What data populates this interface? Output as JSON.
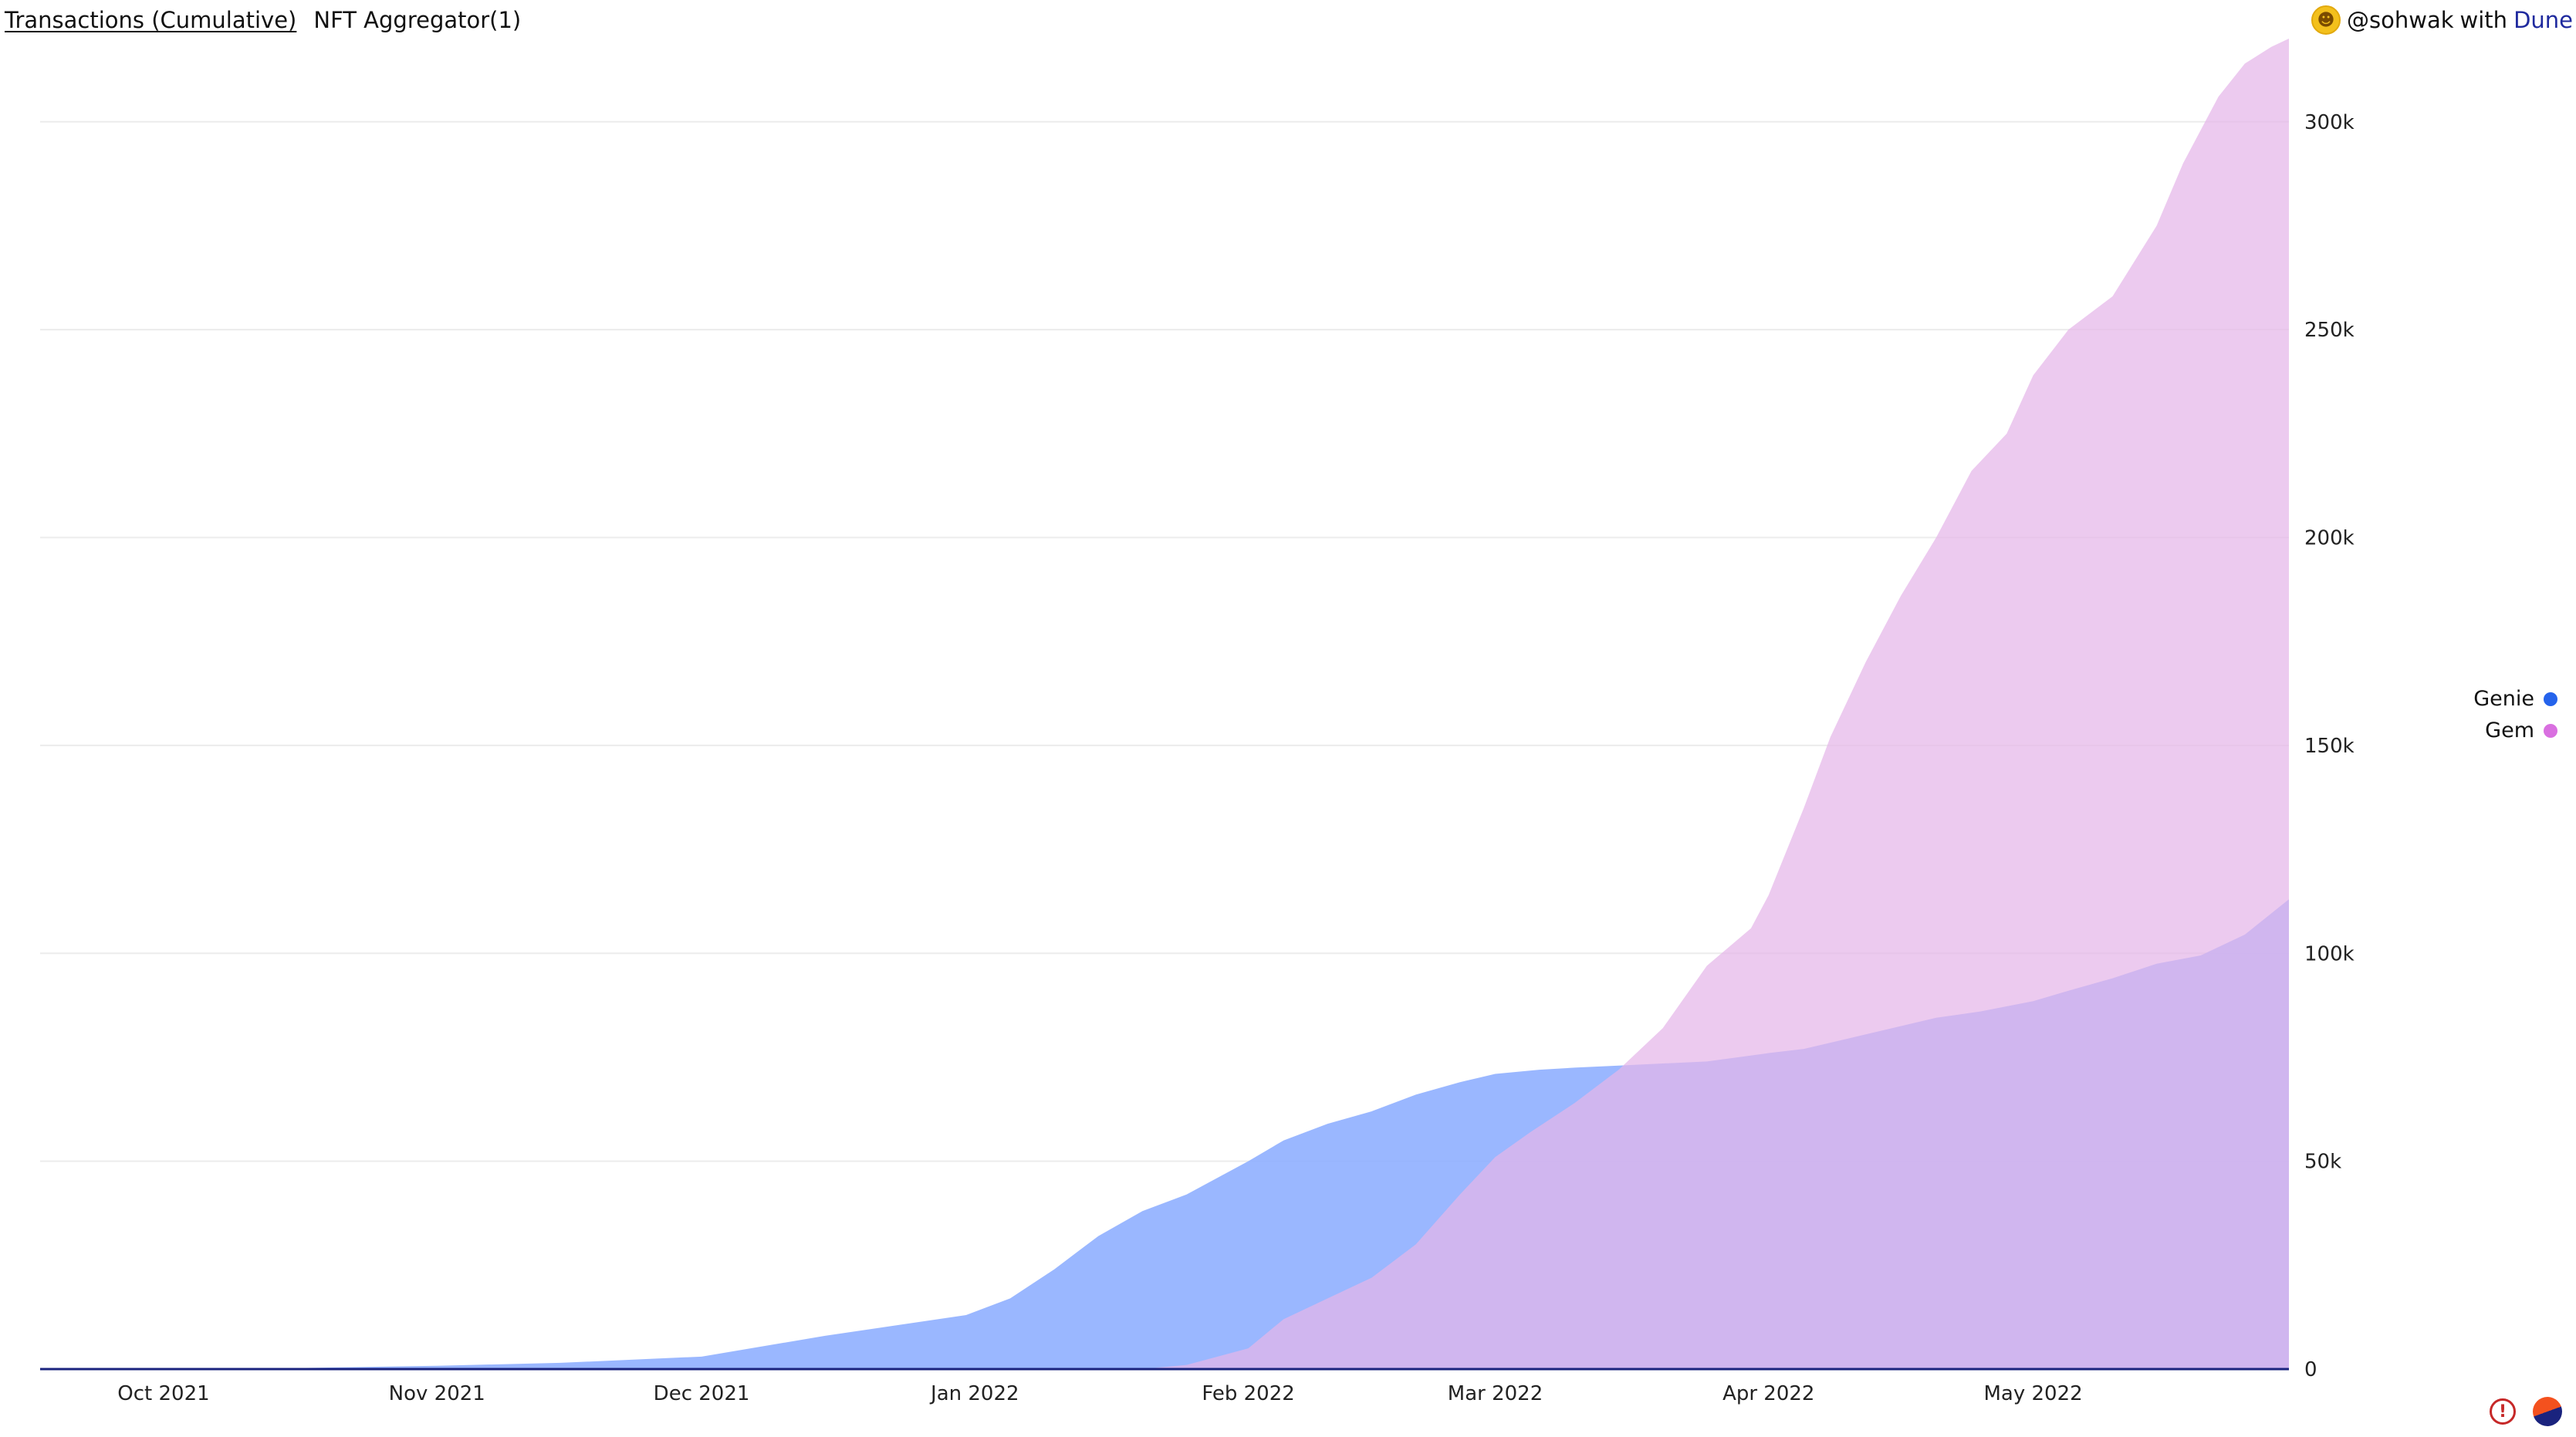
{
  "header": {
    "tabs": [
      {
        "label": "Transactions (Cumulative)"
      },
      {
        "label": "NFT Aggregator(1)"
      }
    ],
    "credit": {
      "author": "@sohwak",
      "with": "with",
      "brand": "Dune"
    }
  },
  "colors": {
    "genie": "#8fafff",
    "gem": "#e5b5e9",
    "overlap": "#b89aea",
    "genie_dot": "#2563eb",
    "gem_dot": "#d96fe0"
  },
  "chart_data": {
    "type": "area",
    "title": "",
    "xlabel": "",
    "ylabel": "",
    "x_ticks": [
      "Oct 2021",
      "Nov 2021",
      "Dec 2021",
      "Jan 2022",
      "Feb 2022",
      "Mar 2022",
      "Apr 2022",
      "May 2022"
    ],
    "y_ticks": [
      "0",
      "50k",
      "100k",
      "150k",
      "200k",
      "250k",
      "300k"
    ],
    "ylim": [
      0,
      320000
    ],
    "xlim": [
      "2021-09-17",
      "2022-05-30"
    ],
    "y_axis_position": "right",
    "grid": true,
    "legend_position": "right",
    "series": [
      {
        "name": "Genie",
        "x": [
          "2021-09-17",
          "2021-10-15",
          "2021-11-01",
          "2021-11-15",
          "2021-12-01",
          "2021-12-15",
          "2021-12-31",
          "2022-01-05",
          "2022-01-10",
          "2022-01-15",
          "2022-01-20",
          "2022-01-25",
          "2022-02-01",
          "2022-02-05",
          "2022-02-10",
          "2022-02-15",
          "2022-02-20",
          "2022-02-25",
          "2022-03-01",
          "2022-03-06",
          "2022-03-10",
          "2022-03-15",
          "2022-03-20",
          "2022-03-25",
          "2022-04-01",
          "2022-04-05",
          "2022-04-10",
          "2022-04-15",
          "2022-04-20",
          "2022-04-25",
          "2022-05-01",
          "2022-05-05",
          "2022-05-10",
          "2022-05-15",
          "2022-05-20",
          "2022-05-25",
          "2022-05-30"
        ],
        "values": [
          0,
          200,
          800,
          1500,
          3000,
          8000,
          13000,
          17000,
          24000,
          32000,
          38000,
          42000,
          50000,
          55000,
          59000,
          62000,
          66000,
          69000,
          71000,
          72000,
          72500,
          73000,
          73500,
          74000,
          76000,
          77000,
          79500,
          82000,
          84500,
          86000,
          88500,
          91000,
          94000,
          97500,
          99500,
          104500,
          113000
        ]
      },
      {
        "name": "Gem",
        "x": [
          "2021-09-17",
          "2022-01-20",
          "2022-01-25",
          "2022-02-01",
          "2022-02-05",
          "2022-02-10",
          "2022-02-15",
          "2022-02-20",
          "2022-02-25",
          "2022-03-01",
          "2022-03-05",
          "2022-03-10",
          "2022-03-15",
          "2022-03-20",
          "2022-03-25",
          "2022-03-30",
          "2022-04-01",
          "2022-04-05",
          "2022-04-08",
          "2022-04-12",
          "2022-04-16",
          "2022-04-20",
          "2022-04-24",
          "2022-04-28",
          "2022-05-01",
          "2022-05-05",
          "2022-05-10",
          "2022-05-15",
          "2022-05-18",
          "2022-05-22",
          "2022-05-25",
          "2022-05-28",
          "2022-05-30"
        ],
        "values": [
          0,
          0,
          1000,
          5000,
          12000,
          17000,
          22000,
          30000,
          42000,
          51000,
          57000,
          64000,
          72000,
          82000,
          97000,
          106000,
          114000,
          135000,
          152000,
          170000,
          186000,
          200000,
          216000,
          225000,
          239000,
          250000,
          258000,
          275000,
          290000,
          306000,
          314000,
          318000,
          320000
        ]
      }
    ]
  }
}
